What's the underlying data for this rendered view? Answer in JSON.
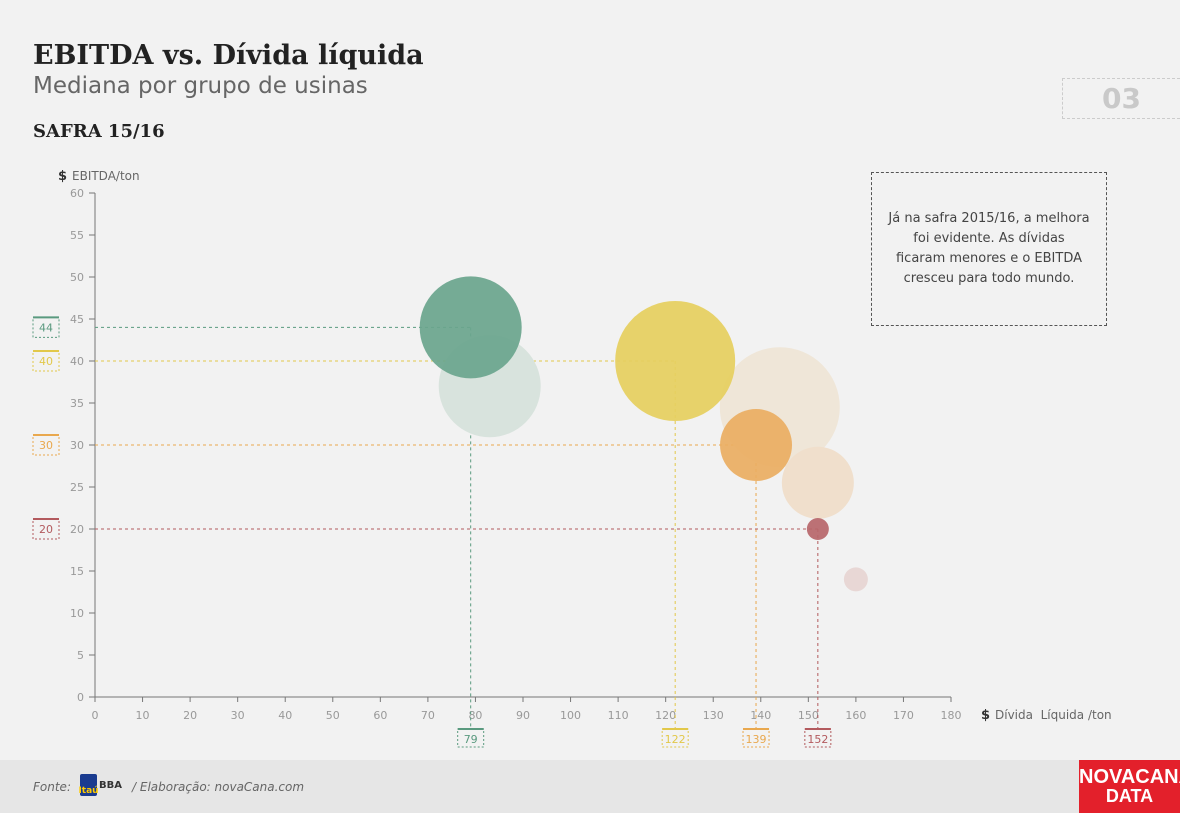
{
  "header": {
    "title": "EBITDA vs. Dívida líquida",
    "subtitle": "Mediana por grupo de usinas",
    "period": "SAFRA 15/16",
    "page_number": "03"
  },
  "note": "Já na safra 2015/16, a melhora foi evidente. As dívidas ficaram menores e o EBITDA cresceu para todo mundo.",
  "footer": {
    "source_label": "Fonte:",
    "source_logo_mark": "Itaú",
    "source_logo_text": "BBA",
    "elaboration": "/ Elaboração: novaCana.com"
  },
  "brand": {
    "line1": "NOVACANA",
    "line2": "DATA"
  },
  "chart_data": {
    "type": "scatter",
    "subtype": "bubble",
    "y_currency": "$",
    "ylabel": "EBITDA/ton",
    "x_currency": "$",
    "xlabel": "Dívida  Líquida /ton",
    "xlim": [
      0,
      180
    ],
    "ylim": [
      0,
      60
    ],
    "xticks": [
      0,
      10,
      20,
      30,
      40,
      50,
      60,
      70,
      80,
      90,
      100,
      110,
      120,
      130,
      140,
      150,
      160,
      170,
      180
    ],
    "yticks": [
      0,
      5,
      10,
      15,
      20,
      25,
      30,
      35,
      40,
      45,
      50,
      55,
      60
    ],
    "grid": false,
    "bubbles": [
      {
        "x": 83,
        "y": 37,
        "size": 51,
        "color": "#d8e3dd",
        "faded": true
      },
      {
        "x": 144,
        "y": 34.5,
        "size": 60,
        "color": "#efe6d8",
        "faded": true
      },
      {
        "x": 152,
        "y": 25.5,
        "size": 36,
        "color": "#f0dfcc",
        "faded": true
      },
      {
        "x": 160,
        "y": 14,
        "size": 12,
        "color": "#e8d7d5",
        "faded": true
      },
      {
        "x": 79,
        "y": 44,
        "size": 51,
        "color": "#6aa58d",
        "label_x": "79",
        "label_y": "44",
        "label_color": "#5a9a7f"
      },
      {
        "x": 122,
        "y": 40,
        "size": 60,
        "color": "#e6cf5e",
        "label_x": "122",
        "label_y": "40",
        "label_color": "#e2c84a"
      },
      {
        "x": 139,
        "y": 30,
        "size": 36,
        "color": "#eaae62",
        "label_x": "139",
        "label_y": "30",
        "label_color": "#e9a84e"
      },
      {
        "x": 152,
        "y": 20,
        "size": 11,
        "color": "#b7666a",
        "label_x": "152",
        "label_y": "20",
        "label_color": "#b35a5e"
      }
    ]
  }
}
